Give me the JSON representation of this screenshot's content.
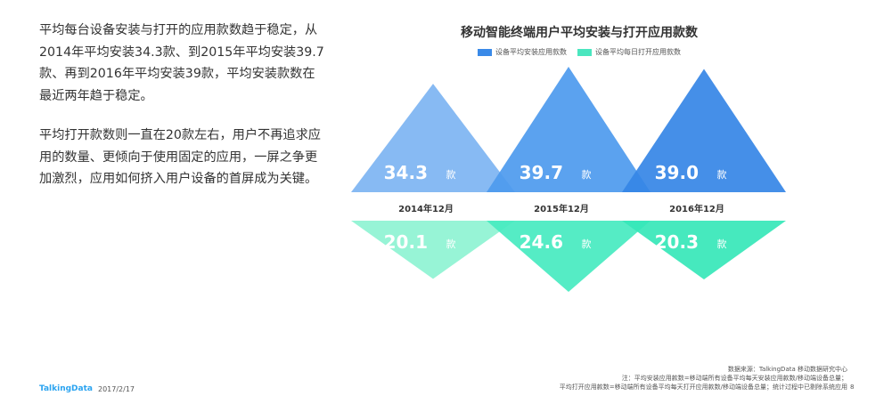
{
  "text_block": {
    "paragraphs": [
      "平均每台设备安装与打开的应用款数趋于稳定，从2014年平均安装34.3款、到2015年平均安装39.7款、再到2016年平均安装39款，平均安装款数在最近两年趋于稳定。",
      "平均打开款数则一直在20款左右，用户不再追求应用的数量、更倾向于使用固定的应用，一屏之争更加激烈，应用如何挤入用户设备的首屏成为关键。"
    ]
  },
  "chart_data": {
    "type": "bar",
    "title": "移动智能终端用户平均安装与打开应用款数",
    "categories": [
      "2014年12月",
      "2015年12月",
      "2016年12月"
    ],
    "unit": "款",
    "series": [
      {
        "name": "设备平均安装应用款数",
        "values": [
          34.3,
          39.7,
          39.0
        ],
        "labels": [
          "34.3",
          "39.7",
          "39.0"
        ],
        "colors": [
          "#7db4f2",
          "#4d9aee",
          "#3585e6"
        ]
      },
      {
        "name": "设备平均每日打开应用款数",
        "values": [
          20.1,
          24.6,
          20.3
        ],
        "labels": [
          "20.1",
          "24.6",
          "20.3"
        ],
        "colors": [
          "#8ef3d3",
          "#47eac0",
          "#36e7b8"
        ]
      }
    ],
    "legend": "top-center"
  },
  "legend_colors": {
    "install": "#3a8ae8",
    "open": "#4be6bf"
  },
  "footer": {
    "brand": "TalkingData",
    "date": "2017/2/17",
    "page": "8",
    "notes": [
      "数据来源：TalkingData 移动数据研究中心",
      "注：平均安装应用款数=移动端所有设备平均每天安装应用款数/移动端设备总量；",
      "平均打开应用款数=移动端所有设备平均每天打开应用款数/移动端设备总量；统计过程中已剔除系统应用"
    ]
  }
}
